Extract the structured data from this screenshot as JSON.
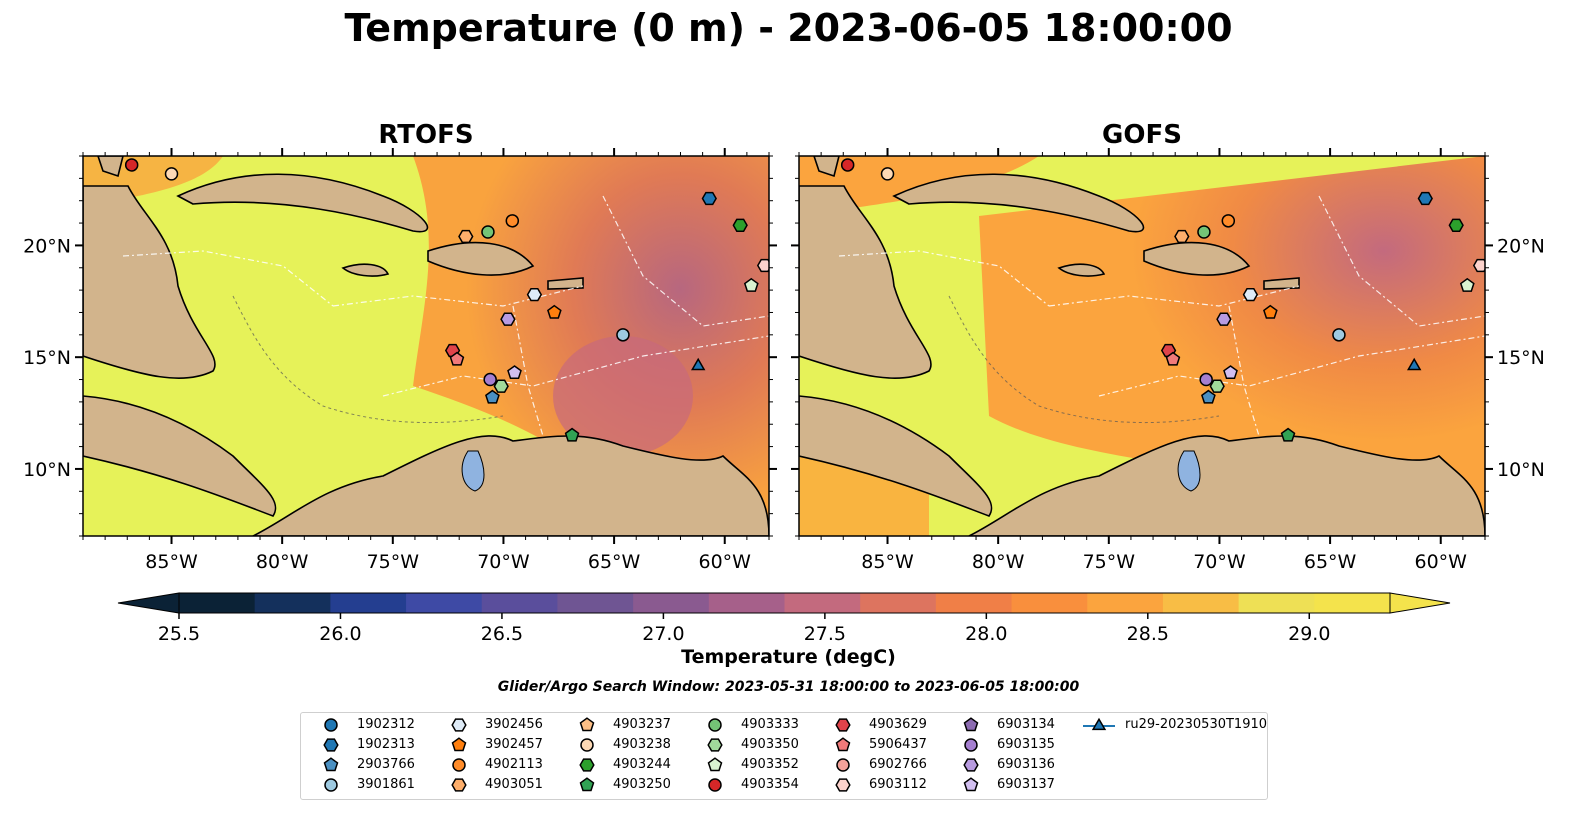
{
  "title": "Temperature (0 m) - 2023-06-05 18:00:00",
  "panels": [
    {
      "title": "RTOFS"
    },
    {
      "title": "GOFS"
    }
  ],
  "axes": {
    "x_ticks": [
      "85°W",
      "80°W",
      "75°W",
      "70°W",
      "65°W",
      "60°W"
    ],
    "y_ticks": [
      "20°N",
      "15°N",
      "10°N"
    ]
  },
  "colorbar": {
    "label": "Temperature (degC)",
    "ticks": [
      "25.5",
      "26.0",
      "26.5",
      "27.0",
      "27.5",
      "28.0",
      "28.5",
      "29.0"
    ],
    "colors": [
      "#0b2236",
      "#14305c",
      "#243e90",
      "#3e4aa5",
      "#5a4e9c",
      "#6f5593",
      "#8a5a90",
      "#a6608a",
      "#c36a7e",
      "#dd745f",
      "#f07f47",
      "#f98f3d",
      "#fba43e",
      "#f8bd45",
      "#eee055",
      "#f4e34c"
    ]
  },
  "search_window": "Glider/Argo Search Window: 2023-05-31 18:00:00 to 2023-06-05 18:00:00",
  "legend": [
    {
      "label": "1902312",
      "marker": "circle",
      "color": "#1f77b4"
    },
    {
      "label": "1902313",
      "marker": "hexagon",
      "color": "#1f77b4"
    },
    {
      "label": "2903766",
      "marker": "pentagon",
      "color": "#4a90c2"
    },
    {
      "label": "3901861",
      "marker": "circle",
      "color": "#9ecae1"
    },
    {
      "label": "3902456",
      "marker": "hexagon",
      "color": "#deebf7"
    },
    {
      "label": "3902457",
      "marker": "pentagon",
      "color": "#ff7f0e"
    },
    {
      "label": "4902113",
      "marker": "circle",
      "color": "#ff8c2a"
    },
    {
      "label": "4903051",
      "marker": "hexagon",
      "color": "#fdae6b"
    },
    {
      "label": "4903237",
      "marker": "pentagon",
      "color": "#fdbf86"
    },
    {
      "label": "4903238",
      "marker": "circle",
      "color": "#fdd9b5"
    },
    {
      "label": "4903244",
      "marker": "hexagon",
      "color": "#2ca02c"
    },
    {
      "label": "4903250",
      "marker": "pentagon",
      "color": "#31a354"
    },
    {
      "label": "4903333",
      "marker": "circle",
      "color": "#74c476"
    },
    {
      "label": "4903350",
      "marker": "hexagon",
      "color": "#a1d99b"
    },
    {
      "label": "4903352",
      "marker": "pentagon",
      "color": "#d9f2d0"
    },
    {
      "label": "4903354",
      "marker": "circle",
      "color": "#d62728"
    },
    {
      "label": "4903629",
      "marker": "hexagon",
      "color": "#e0434a"
    },
    {
      "label": "5906437",
      "marker": "pentagon",
      "color": "#f07a7a"
    },
    {
      "label": "6902766",
      "marker": "circle",
      "color": "#f4a29a"
    },
    {
      "label": "6903112",
      "marker": "hexagon",
      "color": "#fcd2cc"
    },
    {
      "label": "6903134",
      "marker": "pentagon",
      "color": "#8c6bb1"
    },
    {
      "label": "6903135",
      "marker": "circle",
      "color": "#a57fd0"
    },
    {
      "label": "6903136",
      "marker": "hexagon",
      "color": "#b89be0"
    },
    {
      "label": "6903137",
      "marker": "pentagon",
      "color": "#d2bff0"
    },
    {
      "label": "ru29-20230530T1910",
      "marker": "triangle-line",
      "color": "#1f77b4"
    }
  ],
  "chart_data": {
    "type": "heatmap",
    "title": "Temperature (0 m) - 2023-06-05 18:00:00",
    "panels": [
      "RTOFS",
      "GOFS"
    ],
    "variable": "Temperature (degC)",
    "color_range": [
      25.5,
      29.0
    ],
    "lon_range": [
      -89,
      -58
    ],
    "lat_range": [
      7,
      24
    ],
    "floats": [
      {
        "id": "4903354",
        "lon": -86.8,
        "lat": 23.6
      },
      {
        "id": "4903238",
        "lon": -85.0,
        "lat": 23.2
      },
      {
        "id": "4903051",
        "lon": -71.7,
        "lat": 20.4
      },
      {
        "id": "4903333",
        "lon": -70.7,
        "lat": 20.6
      },
      {
        "id": "4902113",
        "lon": -69.6,
        "lat": 21.1
      },
      {
        "id": "3902456",
        "lon": -68.6,
        "lat": 17.8
      },
      {
        "id": "3902457",
        "lon": -67.7,
        "lat": 17.0
      },
      {
        "id": "6903136",
        "lon": -69.8,
        "lat": 16.7
      },
      {
        "id": "4903629",
        "lon": -72.3,
        "lat": 15.3
      },
      {
        "id": "5906437",
        "lon": -72.1,
        "lat": 14.9
      },
      {
        "id": "6903135",
        "lon": -70.6,
        "lat": 14.0
      },
      {
        "id": "4903350",
        "lon": -70.1,
        "lat": 13.7
      },
      {
        "id": "6903137",
        "lon": -69.5,
        "lat": 14.3
      },
      {
        "id": "2903766",
        "lon": -70.5,
        "lat": 13.2
      },
      {
        "id": "3901861",
        "lon": -64.6,
        "lat": 16.0
      },
      {
        "id": "1902313",
        "lon": -60.7,
        "lat": 22.1
      },
      {
        "id": "4903244",
        "lon": -59.3,
        "lat": 20.9
      },
      {
        "id": "6903112",
        "lon": -58.2,
        "lat": 19.1
      },
      {
        "id": "4903352",
        "lon": -58.8,
        "lat": 18.2
      },
      {
        "id": "4903250",
        "lon": -66.9,
        "lat": 11.5
      },
      {
        "id": "ru29-20230530T1910",
        "lon": -61.2,
        "lat": 14.6
      }
    ]
  }
}
